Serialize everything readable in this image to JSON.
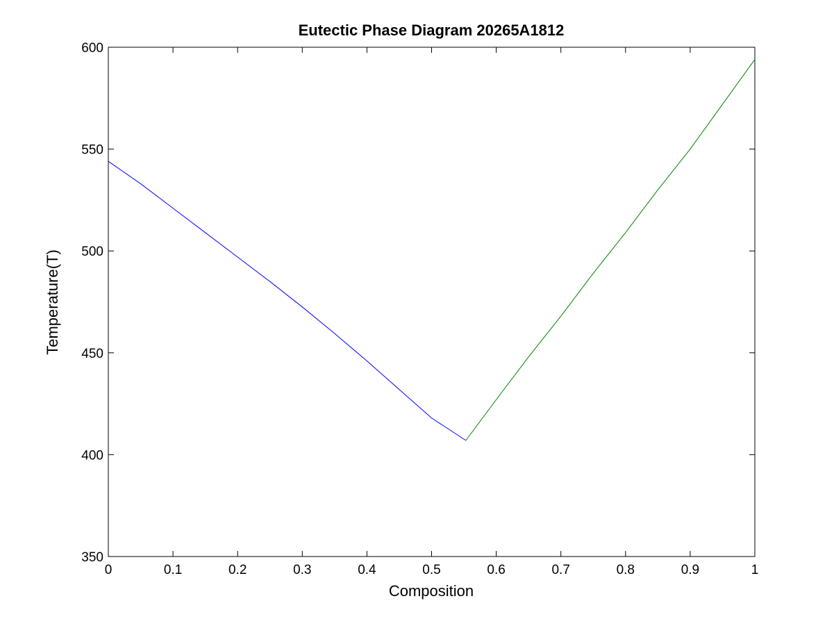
{
  "chart_data": {
    "type": "line",
    "title": "Eutectic Phase Diagram 20265A1812",
    "xlabel": "Composition",
    "ylabel": "Temperature(T)",
    "xlim": [
      0,
      1
    ],
    "ylim": [
      350,
      600
    ],
    "xticks": [
      0,
      0.1,
      0.2,
      0.3,
      0.4,
      0.5,
      0.6,
      0.7,
      0.8,
      0.9,
      1
    ],
    "xtick_labels": [
      "0",
      "0.1",
      "0.2",
      "0.3",
      "0.4",
      "0.5",
      "0.6",
      "0.7",
      "0.8",
      "0.9",
      "1"
    ],
    "yticks": [
      350,
      400,
      450,
      500,
      550,
      600
    ],
    "ytick_labels": [
      "350",
      "400",
      "450",
      "500",
      "550",
      "600"
    ],
    "grid": false,
    "legend": "none",
    "series": [
      {
        "color": "#0000ff",
        "x": [
          0,
          0.05,
          0.1,
          0.15,
          0.2,
          0.25,
          0.3,
          0.35,
          0.4,
          0.45,
          0.5,
          0.553
        ],
        "y": [
          544,
          533,
          521,
          509,
          497,
          485,
          472.5,
          459.5,
          446,
          432,
          418,
          407
        ]
      },
      {
        "color": "#008000",
        "x": [
          0.553,
          0.6,
          0.65,
          0.7,
          0.75,
          0.8,
          0.85,
          0.9,
          0.95,
          1.0
        ],
        "y": [
          407,
          427,
          448,
          468,
          489,
          509,
          530,
          550,
          572,
          594
        ]
      }
    ]
  }
}
